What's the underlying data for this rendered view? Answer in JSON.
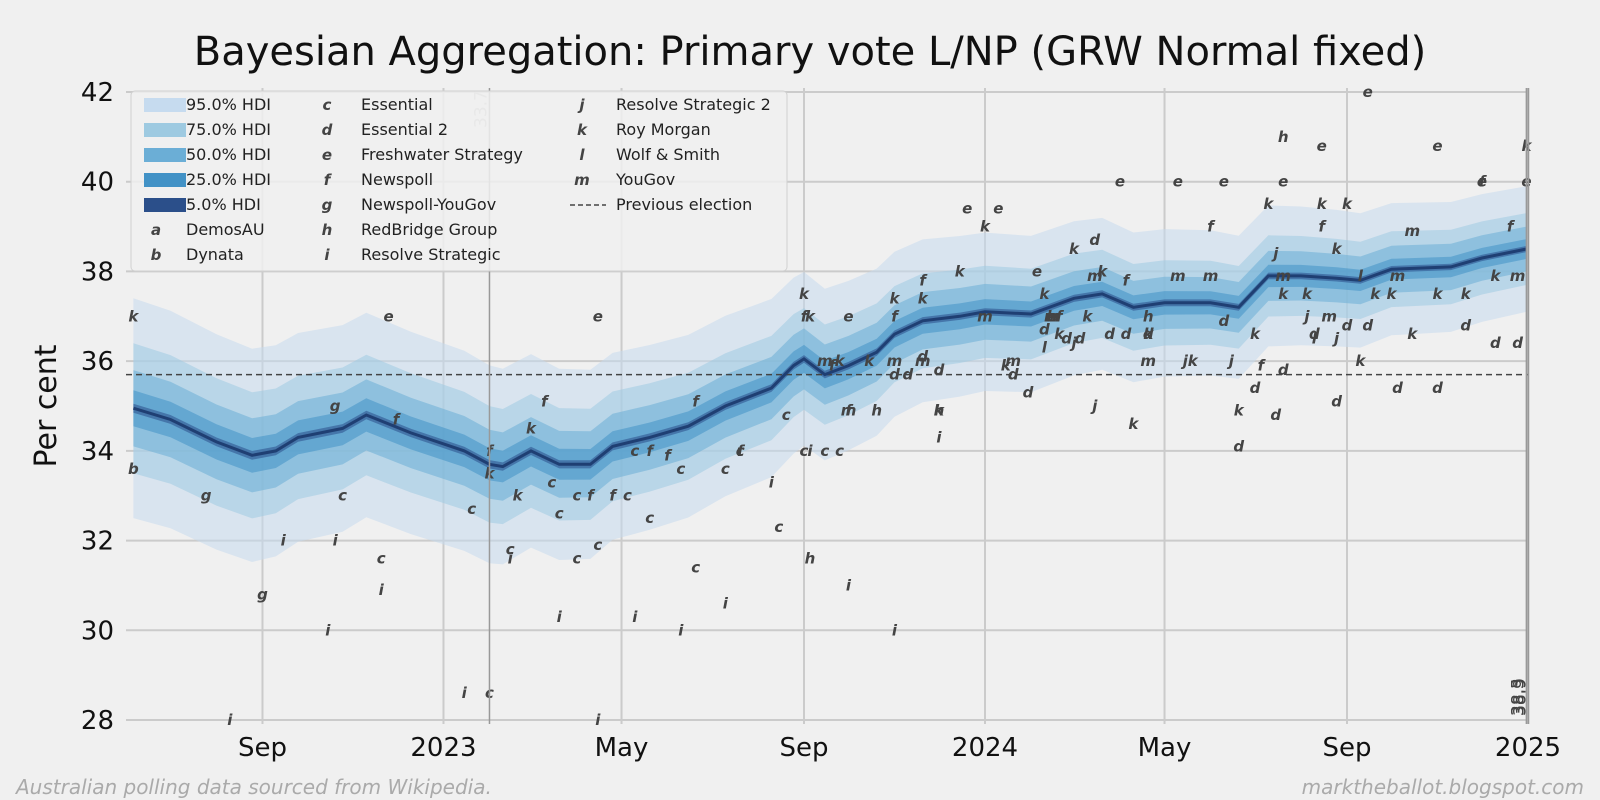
{
  "chart_data": {
    "type": "line",
    "title": "Bayesian Aggregation: Primary vote L/NP (GRW Normal fixed)",
    "ylabel": "Per cent",
    "xlabel": "",
    "ylim": [
      28,
      42
    ],
    "xlim": [
      "2022-06-01",
      "2025-01-01"
    ],
    "yticks": [
      28,
      30,
      32,
      34,
      36,
      38,
      40,
      42
    ],
    "xticks": [
      {
        "date": "2022-09-01",
        "label": "Sep"
      },
      {
        "date": "2023-01-01",
        "label": "2023"
      },
      {
        "date": "2023-05-01",
        "label": "May"
      },
      {
        "date": "2023-09-01",
        "label": "Sep"
      },
      {
        "date": "2024-01-01",
        "label": "2024"
      },
      {
        "date": "2024-05-01",
        "label": "May"
      },
      {
        "date": "2024-09-01",
        "label": "Sep"
      },
      {
        "date": "2025-01-01",
        "label": "2025"
      }
    ],
    "grid": true,
    "legend_position": "top-left",
    "previous_election": 35.7,
    "annotations": [
      {
        "date": "2023-02-01",
        "text": "33.7",
        "color": "#bbbbbb"
      },
      {
        "date": "2024-12-31",
        "text": "38.5",
        "color": "#444444"
      },
      {
        "date": "2024-12-31",
        "text": "38.3",
        "color": "#444444"
      },
      {
        "date": "2024-12-31",
        "text": "38.9",
        "color": "#444444"
      }
    ],
    "hdi_levels": [
      {
        "label": "95.0% HDI",
        "color": "#c6dbef",
        "half_width": [
          2.45,
          1.4
        ]
      },
      {
        "label": "75.0% HDI",
        "color": "#9ecae1",
        "half_width": [
          1.45,
          0.8
        ]
      },
      {
        "label": "50.0% HDI",
        "color": "#6baed6",
        "half_width": [
          0.85,
          0.5
        ]
      },
      {
        "label": "25.0% HDI",
        "color": "#4292c6",
        "half_width": [
          0.4,
          0.22
        ]
      },
      {
        "label": "5.0% HDI",
        "color": "#2b4f8a",
        "half_width": [
          0.1,
          0.07
        ]
      }
    ],
    "median": {
      "dates": [
        "2022-06-06",
        "2022-07-01",
        "2022-08-01",
        "2022-08-25",
        "2022-09-10",
        "2022-09-25",
        "2022-10-25",
        "2022-11-10",
        "2022-12-10",
        "2023-01-15",
        "2023-02-01",
        "2023-02-10",
        "2023-03-01",
        "2023-03-20",
        "2023-04-10",
        "2023-04-25",
        "2023-05-20",
        "2023-06-15",
        "2023-07-10",
        "2023-08-10",
        "2023-08-25",
        "2023-09-01",
        "2023-09-15",
        "2023-10-01",
        "2023-10-20",
        "2023-11-01",
        "2023-11-20",
        "2023-12-15",
        "2024-01-01",
        "2024-02-01",
        "2024-03-01",
        "2024-03-20",
        "2024-04-10",
        "2024-05-01",
        "2024-06-01",
        "2024-06-20",
        "2024-07-10",
        "2024-08-01",
        "2024-08-25",
        "2024-09-10",
        "2024-10-01",
        "2024-11-10",
        "2024-12-01",
        "2024-12-31"
      ],
      "values": [
        34.95,
        34.7,
        34.2,
        33.9,
        34.0,
        34.3,
        34.5,
        34.8,
        34.4,
        34.0,
        33.7,
        33.65,
        34.0,
        33.7,
        33.7,
        34.1,
        34.3,
        34.55,
        35.0,
        35.4,
        35.9,
        36.05,
        35.7,
        35.9,
        36.2,
        36.6,
        36.9,
        37.0,
        37.1,
        37.05,
        37.4,
        37.5,
        37.2,
        37.3,
        37.3,
        37.2,
        37.9,
        37.9,
        37.85,
        37.8,
        38.05,
        38.1,
        38.3,
        38.5
      ]
    },
    "series": [
      {
        "name": "DemosAU",
        "marker": "a",
        "points": []
      },
      {
        "name": "Dynata",
        "marker": "b",
        "points": [
          [
            "2022-06-06",
            33.6
          ]
        ]
      },
      {
        "name": "Essential",
        "marker": "c",
        "points": [
          [
            "2022-10-25",
            33.0
          ],
          [
            "2022-11-20",
            31.6
          ],
          [
            "2023-01-20",
            32.7
          ],
          [
            "2023-02-01",
            28.6
          ],
          [
            "2023-02-15",
            31.8
          ],
          [
            "2023-03-15",
            33.3
          ],
          [
            "2023-03-20",
            32.6
          ],
          [
            "2023-04-01",
            33.0
          ],
          [
            "2023-04-01",
            31.6
          ],
          [
            "2023-04-15",
            31.9
          ],
          [
            "2023-05-05",
            33.0
          ],
          [
            "2023-05-10",
            34.0
          ],
          [
            "2023-05-20",
            32.5
          ],
          [
            "2023-06-10",
            33.6
          ],
          [
            "2023-06-20",
            31.4
          ],
          [
            "2023-07-10",
            33.6
          ],
          [
            "2023-07-20",
            34.0
          ],
          [
            "2023-08-15",
            32.3
          ],
          [
            "2023-08-20",
            34.8
          ],
          [
            "2023-09-01",
            34.0
          ],
          [
            "2023-09-15",
            34.0
          ],
          [
            "2023-09-25",
            34.0
          ]
        ]
      },
      {
        "name": "Essential 2",
        "marker": "d",
        "points": [
          [
            "2023-11-01",
            35.7
          ],
          [
            "2023-11-10",
            35.7
          ],
          [
            "2023-11-20",
            36.1
          ],
          [
            "2023-12-01",
            35.8
          ],
          [
            "2024-01-20",
            35.7
          ],
          [
            "2024-01-30",
            35.3
          ],
          [
            "2024-02-10",
            36.7
          ],
          [
            "2024-02-25",
            36.5
          ],
          [
            "2024-03-05",
            36.5
          ],
          [
            "2024-03-15",
            38.7
          ],
          [
            "2024-03-25",
            36.6
          ],
          [
            "2024-04-05",
            36.6
          ],
          [
            "2024-04-20",
            36.6
          ],
          [
            "2024-06-10",
            36.9
          ],
          [
            "2024-06-20",
            34.1
          ],
          [
            "2024-07-01",
            35.4
          ],
          [
            "2024-07-15",
            34.8
          ],
          [
            "2024-07-20",
            35.8
          ],
          [
            "2024-08-10",
            36.6
          ],
          [
            "2024-08-25",
            35.1
          ],
          [
            "2024-09-01",
            36.8
          ],
          [
            "2024-09-15",
            36.8
          ],
          [
            "2024-10-05",
            35.4
          ],
          [
            "2024-11-01",
            35.4
          ],
          [
            "2024-11-20",
            36.8
          ],
          [
            "2024-12-10",
            36.4
          ],
          [
            "2024-12-25",
            36.4
          ]
        ]
      },
      {
        "name": "Freshwater Strategy",
        "marker": "e",
        "points": [
          [
            "2022-11-25",
            37.0
          ],
          [
            "2023-04-15",
            37.0
          ],
          [
            "2023-10-01",
            37.0
          ],
          [
            "2023-12-20",
            39.4
          ],
          [
            "2024-01-10",
            39.4
          ],
          [
            "2024-02-05",
            38.0
          ],
          [
            "2024-02-15",
            37.0
          ],
          [
            "2024-04-01",
            40.0
          ],
          [
            "2024-05-10",
            40.0
          ],
          [
            "2024-06-10",
            40.0
          ],
          [
            "2024-07-20",
            40.0
          ],
          [
            "2024-08-15",
            40.8
          ],
          [
            "2024-09-15",
            42.0
          ],
          [
            "2024-11-01",
            40.8
          ],
          [
            "2024-12-01",
            40.0
          ],
          [
            "2024-12-31",
            40.0
          ]
        ]
      },
      {
        "name": "Newspoll",
        "marker": "f",
        "points": [
          [
            "2022-11-30",
            34.7
          ],
          [
            "2023-02-01",
            34.0
          ],
          [
            "2023-03-10",
            35.1
          ],
          [
            "2023-04-10",
            33.0
          ],
          [
            "2023-04-25",
            33.0
          ],
          [
            "2023-05-20",
            34.0
          ],
          [
            "2023-06-01",
            33.9
          ],
          [
            "2023-06-20",
            35.1
          ],
          [
            "2023-07-20",
            34.0
          ],
          [
            "2023-09-01",
            37.0
          ],
          [
            "2023-09-20",
            35.9
          ],
          [
            "2023-10-01",
            34.9
          ],
          [
            "2023-11-01",
            37.0
          ],
          [
            "2023-11-20",
            37.8
          ],
          [
            "2024-02-20",
            37.0
          ],
          [
            "2024-04-05",
            37.8
          ],
          [
            "2024-06-01",
            39.0
          ],
          [
            "2024-07-05",
            35.9
          ],
          [
            "2024-08-15",
            39.0
          ],
          [
            "2024-12-01",
            40.0
          ],
          [
            "2024-12-20",
            39.0
          ]
        ]
      },
      {
        "name": "Newspoll-YouGov",
        "marker": "g",
        "points": [
          [
            "2022-07-25",
            33.0
          ],
          [
            "2022-09-01",
            30.8
          ],
          [
            "2022-10-20",
            35.0
          ]
        ]
      },
      {
        "name": "RedBridge Group",
        "marker": "h",
        "points": [
          [
            "2023-09-05",
            31.6
          ],
          [
            "2023-10-20",
            34.9
          ],
          [
            "2023-12-01",
            34.9
          ],
          [
            "2024-02-15",
            37.0
          ],
          [
            "2024-04-20",
            37.0
          ],
          [
            "2024-07-20",
            41.0
          ]
        ]
      },
      {
        "name": "Resolve Strategic",
        "marker": "i",
        "points": [
          [
            "2022-08-10",
            28.0
          ],
          [
            "2022-09-15",
            32.0
          ],
          [
            "2022-10-15",
            30.0
          ],
          [
            "2022-10-20",
            32.0
          ],
          [
            "2022-11-20",
            30.9
          ],
          [
            "2023-01-15",
            28.6
          ],
          [
            "2023-02-15",
            31.6
          ],
          [
            "2023-03-20",
            30.3
          ],
          [
            "2023-04-15",
            28.0
          ],
          [
            "2023-05-10",
            30.3
          ],
          [
            "2023-06-10",
            30.0
          ],
          [
            "2023-07-10",
            30.6
          ],
          [
            "2023-08-10",
            33.3
          ],
          [
            "2023-09-05",
            34.0
          ],
          [
            "2023-10-01",
            31.0
          ],
          [
            "2023-11-01",
            30.0
          ],
          [
            "2023-12-01",
            34.3
          ]
        ]
      },
      {
        "name": "Resolve Strategic 2",
        "marker": "j",
        "points": [
          [
            "2024-03-01",
            36.4
          ],
          [
            "2024-03-15",
            35.0
          ],
          [
            "2024-05-15",
            36.0
          ],
          [
            "2024-06-15",
            36.0
          ],
          [
            "2024-07-15",
            38.4
          ],
          [
            "2024-08-05",
            37.0
          ],
          [
            "2024-08-25",
            36.5
          ]
        ]
      },
      {
        "name": "Roy Morgan",
        "marker": "k",
        "points": [
          [
            "2022-06-06",
            37.0
          ],
          [
            "2023-02-01",
            33.5
          ],
          [
            "2023-02-20",
            33.0
          ],
          [
            "2023-03-01",
            34.5
          ],
          [
            "2023-09-01",
            37.5
          ],
          [
            "2023-09-05",
            37.0
          ],
          [
            "2023-09-25",
            36.0
          ],
          [
            "2023-10-15",
            36.0
          ],
          [
            "2023-11-01",
            37.4
          ],
          [
            "2023-11-20",
            37.4
          ],
          [
            "2023-12-01",
            34.9
          ],
          [
            "2023-12-15",
            38.0
          ],
          [
            "2024-01-01",
            39.0
          ],
          [
            "2024-01-15",
            35.9
          ],
          [
            "2024-02-10",
            37.5
          ],
          [
            "2024-02-20",
            36.6
          ],
          [
            "2024-03-01",
            38.5
          ],
          [
            "2024-03-10",
            37.0
          ],
          [
            "2024-03-20",
            38.0
          ],
          [
            "2024-04-10",
            34.6
          ],
          [
            "2024-04-20",
            36.6
          ],
          [
            "2024-05-20",
            36.0
          ],
          [
            "2024-06-20",
            34.9
          ],
          [
            "2024-07-01",
            36.6
          ],
          [
            "2024-07-10",
            39.5
          ],
          [
            "2024-07-20",
            37.5
          ],
          [
            "2024-08-05",
            37.5
          ],
          [
            "2024-08-15",
            39.5
          ],
          [
            "2024-08-25",
            38.5
          ],
          [
            "2024-09-01",
            39.5
          ],
          [
            "2024-09-10",
            36.0
          ],
          [
            "2024-09-20",
            37.5
          ],
          [
            "2024-10-01",
            37.5
          ],
          [
            "2024-10-15",
            36.6
          ],
          [
            "2024-11-01",
            37.5
          ],
          [
            "2024-11-20",
            37.5
          ],
          [
            "2024-12-10",
            37.9
          ],
          [
            "2024-12-31",
            40.8
          ]
        ]
      },
      {
        "name": "Wolf & Smith",
        "marker": "l",
        "points": [
          [
            "2024-02-10",
            36.3
          ],
          [
            "2024-08-10",
            36.5
          ],
          [
            "2024-09-10",
            37.9
          ]
        ]
      },
      {
        "name": "YouGov",
        "marker": "m",
        "points": [
          [
            "2023-09-15",
            36.0
          ],
          [
            "2023-10-01",
            34.9
          ],
          [
            "2023-11-01",
            36.0
          ],
          [
            "2023-11-20",
            36.0
          ],
          [
            "2024-01-01",
            37.0
          ],
          [
            "2024-01-20",
            36.0
          ],
          [
            "2024-02-15",
            37.0
          ],
          [
            "2024-03-15",
            37.9
          ],
          [
            "2024-04-20",
            36.0
          ],
          [
            "2024-05-10",
            37.9
          ],
          [
            "2024-06-01",
            37.9
          ],
          [
            "2024-07-20",
            37.9
          ],
          [
            "2024-08-20",
            37.0
          ],
          [
            "2024-10-05",
            37.9
          ],
          [
            "2024-10-15",
            38.9
          ],
          [
            "2024-12-25",
            37.9
          ]
        ]
      }
    ]
  },
  "footer": {
    "source": "Australian polling data sourced from Wikipedia.",
    "site": "marktheballot.blogspot.com"
  }
}
